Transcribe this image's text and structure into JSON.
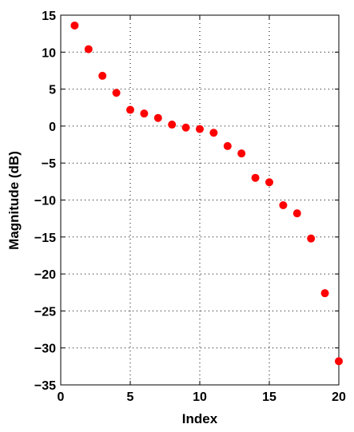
{
  "chart_data": {
    "type": "scatter",
    "title": "",
    "xlabel": "Index",
    "ylabel": "Magnitude (dB)",
    "xlim": [
      0,
      20
    ],
    "ylim": [
      -35,
      15
    ],
    "xticks": [
      0,
      5,
      10,
      15,
      20
    ],
    "yticks": [
      15,
      10,
      5,
      0,
      -5,
      -10,
      -15,
      -20,
      -25,
      -30,
      -35
    ],
    "grid": "dotted",
    "marker_color": "#ff0000",
    "points": [
      {
        "x": 1,
        "y": 13.6
      },
      {
        "x": 2,
        "y": 10.4
      },
      {
        "x": 3,
        "y": 6.8
      },
      {
        "x": 4,
        "y": 4.5
      },
      {
        "x": 5,
        "y": 2.2
      },
      {
        "x": 6,
        "y": 1.7
      },
      {
        "x": 7,
        "y": 1.1
      },
      {
        "x": 8,
        "y": 0.2
      },
      {
        "x": 9,
        "y": -0.2
      },
      {
        "x": 10,
        "y": -0.4
      },
      {
        "x": 11,
        "y": -0.9
      },
      {
        "x": 12,
        "y": -2.7
      },
      {
        "x": 13,
        "y": -3.7
      },
      {
        "x": 14,
        "y": -7.0
      },
      {
        "x": 15,
        "y": -7.6
      },
      {
        "x": 16,
        "y": -10.7
      },
      {
        "x": 17,
        "y": -11.8
      },
      {
        "x": 18,
        "y": -15.2
      },
      {
        "x": 19,
        "y": -22.6
      },
      {
        "x": 20,
        "y": -31.8
      }
    ]
  }
}
